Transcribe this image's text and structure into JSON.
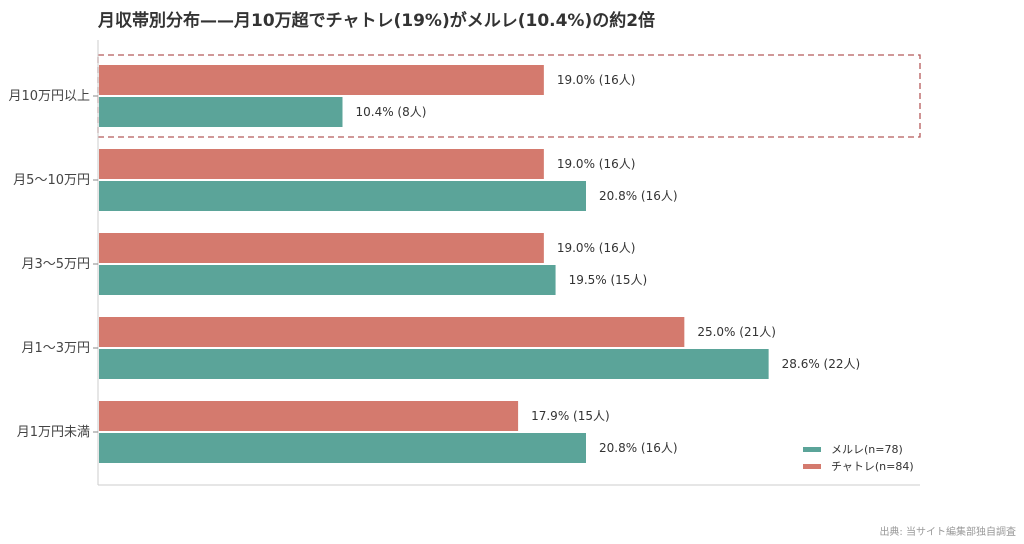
{
  "chart_data": {
    "type": "bar",
    "orientation": "horizontal",
    "title": "月収帯別分布——月10万超でチャトレ(19%)がメルレ(10.4%)の約2倍",
    "categories": [
      "月10万円以上",
      "月5〜10万円",
      "月3〜5万円",
      "月1〜3万円",
      "月1万円未満"
    ],
    "series": [
      {
        "name": "チャトレ(n=84)",
        "color": "#d47a6e",
        "values": [
          19.0,
          19.0,
          19.0,
          25.0,
          17.9
        ],
        "labels": [
          "19.0% (16人)",
          "19.0% (16人)",
          "19.0% (16人)",
          "25.0% (21人)",
          "17.9% (15人)"
        ]
      },
      {
        "name": "メルレ(n=78)",
        "color": "#5ba499",
        "values": [
          10.4,
          20.8,
          19.5,
          28.6,
          20.8
        ],
        "labels": [
          "10.4% (8人)",
          "20.8% (16人)",
          "19.5% (15人)",
          "28.6% (22人)",
          "20.8% (16人)"
        ]
      }
    ],
    "xlim": [
      0,
      32
    ],
    "highlight_category": "月10万円以上",
    "highlight_color": "#b55a5a",
    "legend_position": "bottom-right",
    "legend_order": [
      "メルレ(n=78)",
      "チャトレ(n=84)"
    ],
    "grid": false
  },
  "source": "出典: 当サイト編集部独自調査"
}
